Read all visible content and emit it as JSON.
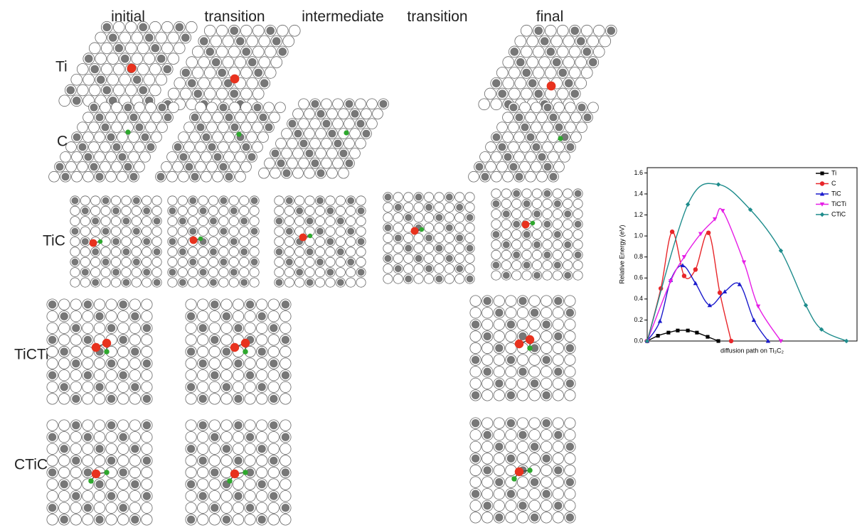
{
  "columns": [
    "initial",
    "transition",
    "intermediate",
    "transition",
    "final"
  ],
  "rows": [
    "Ti",
    "C",
    "TiC",
    "TiCTi",
    "CTiC"
  ],
  "chart_data": {
    "type": "line",
    "ylabel": "Relative Energy (eV)",
    "xlabel": "diffusion path on Ti₃C₂",
    "xlim": [
      0,
      1
    ],
    "ylim": [
      0,
      1.65
    ],
    "yticks": [
      {
        "value": 0,
        "label": "0.0"
      },
      0.2,
      0.4,
      0.6,
      0.8,
      {
        "value": 1,
        "label": "1.0"
      },
      1.2,
      1.4,
      1.6
    ],
    "legend": "top-right",
    "series": [
      {
        "name": "Ti",
        "color": "#000000",
        "marker": "square",
        "x": [
          0,
          0.052,
          0.103,
          0.148,
          0.197,
          0.241,
          0.293,
          0.345
        ],
        "values": [
          0,
          0.05,
          0.08,
          0.1,
          0.1,
          0.08,
          0.04,
          0
        ]
      },
      {
        "name": "C",
        "color": "#e8262a",
        "marker": "circle",
        "x": [
          0,
          0.066,
          0.121,
          0.179,
          0.234,
          0.297,
          0.352,
          0.407
        ],
        "values": [
          0,
          0.5,
          1.04,
          0.62,
          0.68,
          1.03,
          0.46,
          0
        ]
      },
      {
        "name": "TiC",
        "color": "#1a1acc",
        "marker": "triangle-up",
        "x": [
          0,
          0.062,
          0.114,
          0.172,
          0.234,
          0.303,
          0.376,
          0.448,
          0.517,
          0.586
        ],
        "values": [
          0,
          0.19,
          0.58,
          0.72,
          0.55,
          0.34,
          0.47,
          0.54,
          0.2,
          0
        ]
      },
      {
        "name": "TiCTi",
        "color": "#e61ee6",
        "marker": "triangle-down",
        "x": [
          0,
          0.114,
          0.179,
          0.259,
          0.328,
          0.366,
          0.469,
          0.538,
          0.648
        ],
        "values": [
          0,
          0.57,
          0.8,
          1.02,
          1.16,
          1.24,
          0.75,
          0.33,
          0
        ]
      },
      {
        "name": "CTiC",
        "color": "#1e8c8c",
        "marker": "diamond",
        "x": [
          0,
          0.197,
          0.345,
          0.5,
          0.648,
          0.769,
          0.845,
          0.966
        ],
        "values": [
          0,
          1.3,
          1.49,
          1.25,
          0.86,
          0.34,
          0.11,
          0
        ]
      }
    ]
  }
}
